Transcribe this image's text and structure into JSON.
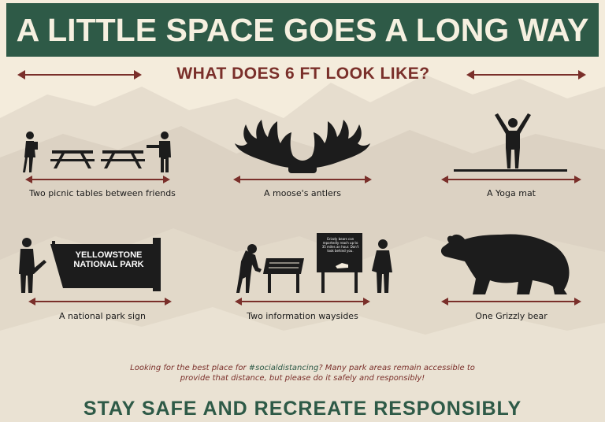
{
  "banner": {
    "title": "A LITTLE SPACE GOES A LONG WAY"
  },
  "subtitle": "WHAT DOES 6 FT LOOK LIKE?",
  "items": [
    {
      "label": "Two picnic tables between friends",
      "icon": "picnic-tables-icon"
    },
    {
      "label": "A moose's antlers",
      "icon": "moose-antlers-icon"
    },
    {
      "label": "A Yoga mat",
      "icon": "yoga-mat-icon"
    },
    {
      "label": "A national park sign",
      "icon": "park-sign-icon"
    },
    {
      "label": "Two information waysides",
      "icon": "wayside-icon"
    },
    {
      "label": "One Grizzly bear",
      "icon": "grizzly-bear-icon"
    }
  ],
  "park_sign": "YELLOWSTONE NATIONAL PARK",
  "wayside_text": "Grizzly bears can reportedly reach up to 35 miles an hour. Don't look behind you.",
  "note": {
    "before": "Looking for the best place for ",
    "hashtag": "#socialdistancing",
    "after": "? Many park areas remain accessible to provide that distance, but please do it safely and responsibly!"
  },
  "footer": "STAY SAFE AND RECREATE RESPONSIBLY",
  "colors": {
    "banner": "#2e5a47",
    "accent_red": "#7a2f2a",
    "background": "#f4ecdc",
    "mountains": "#d9cfc0"
  }
}
